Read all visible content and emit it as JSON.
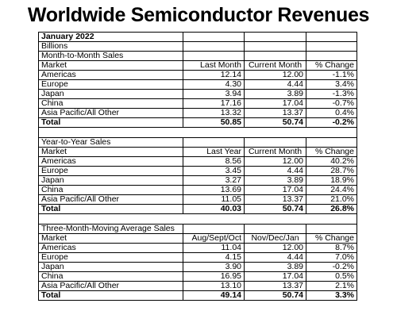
{
  "title": "Worldwide Semiconductor Revenues",
  "date_label": "January 2022",
  "units_label": "Billions",
  "sections": [
    {
      "name": "Month-to-Month Sales",
      "headers": [
        "Market",
        "Last Month",
        "Current Month",
        "% Change"
      ],
      "rows": [
        [
          "Americas",
          "12.14",
          "12.00",
          "-1.1%"
        ],
        [
          "Europe",
          "4.30",
          "4.44",
          "3.4%"
        ],
        [
          "Japan",
          "3.94",
          "3.89",
          "-1.3%"
        ],
        [
          "China",
          "17.16",
          "17.04",
          "-0.7%"
        ],
        [
          "Asia Pacific/All Other",
          "13.32",
          "13.37",
          "0.4%"
        ]
      ],
      "total": [
        "Total",
        "50.85",
        "50.74",
        "-0.2%"
      ]
    },
    {
      "name": "Year-to-Year Sales",
      "headers": [
        "Market",
        "Last Year",
        "Current Month",
        "% Change"
      ],
      "rows": [
        [
          "Americas",
          "8.56",
          "12.00",
          "40.2%"
        ],
        [
          "Europe",
          "3.45",
          "4.44",
          "28.7%"
        ],
        [
          "Japan",
          "3.27",
          "3.89",
          "18.9%"
        ],
        [
          "China",
          "13.69",
          "17.04",
          "24.4%"
        ],
        [
          "Asia Pacific/All Other",
          "11.05",
          "13.37",
          "21.0%"
        ]
      ],
      "total": [
        "Total",
        "40.03",
        "50.74",
        "26.8%"
      ]
    },
    {
      "name": "Three-Month-Moving Average Sales",
      "headers": [
        "Market",
        "Aug/Sept/Oct",
        "Nov/Dec/Jan",
        "% Change"
      ],
      "rows": [
        [
          "Americas",
          "11.04",
          "12.00",
          "8.7%"
        ],
        [
          "Europe",
          "4.15",
          "4.44",
          "7.0%"
        ],
        [
          "Japan",
          "3.90",
          "3.89",
          "-0.2%"
        ],
        [
          "China",
          "16.95",
          "17.04",
          "0.5%"
        ],
        [
          "Asia Pacific/All Other",
          "13.10",
          "13.37",
          "2.1%"
        ]
      ],
      "total": [
        "Total",
        "49.14",
        "50.74",
        "3.3%"
      ]
    }
  ]
}
